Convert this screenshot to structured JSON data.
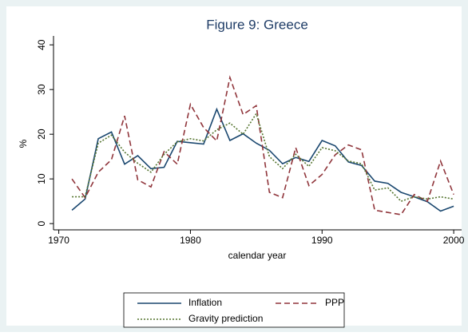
{
  "chart_data": {
    "type": "line",
    "title": "Figure 9: Greece",
    "x_label": "calendar year",
    "y_label": "%",
    "x": [
      1971,
      1972,
      1973,
      1974,
      1975,
      1976,
      1977,
      1978,
      1979,
      1980,
      1981,
      1982,
      1983,
      1984,
      1985,
      1986,
      1987,
      1988,
      1989,
      1990,
      1991,
      1992,
      1993,
      1994,
      1995,
      1996,
      1997,
      1998,
      1999,
      2000
    ],
    "series": [
      {
        "name": "Inflation",
        "color": "#1a476f",
        "dash": "solid",
        "values": [
          3,
          5.5,
          19,
          20.5,
          13.3,
          15.2,
          12.3,
          12.6,
          18.4,
          18.1,
          17.8,
          25.6,
          18.6,
          20.1,
          18,
          16.4,
          13.4,
          14.8,
          13.9,
          18.6,
          17.4,
          13.8,
          13,
          9.5,
          9,
          7,
          6,
          4.9,
          2.8,
          3.9
        ]
      },
      {
        "name": "PPP",
        "color": "#90353b",
        "dash": "dashed",
        "values": [
          10,
          5.8,
          11.5,
          14.3,
          24.1,
          9.8,
          8.2,
          16.1,
          13.3,
          26.7,
          21.5,
          18.5,
          32.7,
          24.4,
          26.4,
          7,
          5.8,
          17,
          8.5,
          11,
          15.4,
          17.6,
          16.5,
          3,
          2.5,
          2,
          6.5,
          5,
          14,
          6.5
        ]
      },
      {
        "name": "Gravity prediction",
        "color": "#55752f",
        "dash": "dotted",
        "values": [
          6,
          6,
          18,
          19.8,
          16,
          13.5,
          11.5,
          15.5,
          18.3,
          19,
          18.5,
          21,
          22.5,
          20,
          24.6,
          15,
          12.3,
          15.5,
          12.8,
          17,
          16.3,
          14,
          13.4,
          7.5,
          8,
          5,
          6,
          5.5,
          6,
          5.5
        ]
      }
    ],
    "xlim": [
      1969.6,
      2000.6
    ],
    "xticks": [
      1970,
      1980,
      1990,
      2000
    ],
    "ylim": [
      -1.4,
      42
    ],
    "yticks": [
      0,
      10,
      20,
      30,
      40
    ],
    "grid": false,
    "legend": "bottom"
  }
}
